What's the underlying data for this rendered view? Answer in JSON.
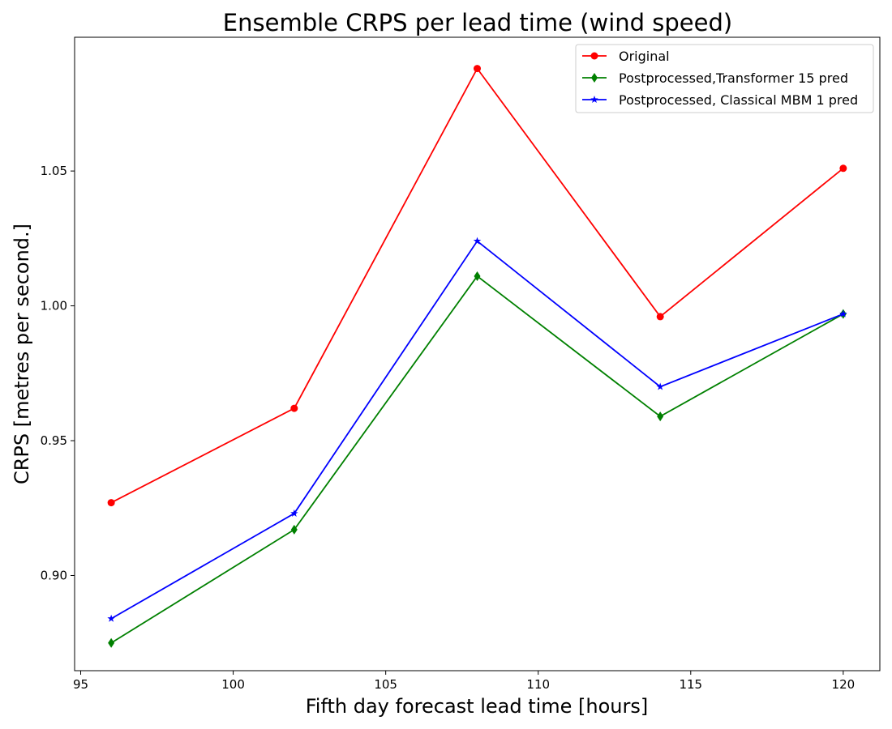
{
  "chart_data": {
    "type": "line",
    "title": "Ensemble CRPS per lead time (wind speed)",
    "xlabel": "Fifth day forecast lead time [hours]",
    "ylabel": "CRPS [metres per second.]",
    "x": [
      96,
      102,
      108,
      114,
      120
    ],
    "xlim": [
      94.8,
      121.2
    ],
    "ylim": [
      0.8647,
      1.0996
    ],
    "xticks": [
      95,
      100,
      105,
      110,
      115,
      120
    ],
    "xtick_labels": [
      "95",
      "100",
      "105",
      "110",
      "115",
      "120"
    ],
    "yticks": [
      0.9,
      0.95,
      1.0,
      1.05
    ],
    "ytick_labels": [
      "0.90",
      "0.95",
      "1.00",
      "1.05"
    ],
    "grid": false,
    "legend_position": "top-right",
    "series": [
      {
        "name": "Original",
        "color": "#ff0000",
        "marker": "circle",
        "values": [
          0.927,
          0.962,
          1.088,
          0.996,
          1.051
        ]
      },
      {
        "name": "Postprocessed,Transformer 15 pred",
        "color": "#008000",
        "marker": "diamond",
        "values": [
          0.875,
          0.917,
          1.011,
          0.959,
          0.997
        ]
      },
      {
        "name": "Postprocessed, Classical MBM 1 pred",
        "color": "#0000ff",
        "marker": "star",
        "values": [
          0.884,
          0.923,
          1.024,
          0.97,
          0.997
        ]
      }
    ]
  }
}
